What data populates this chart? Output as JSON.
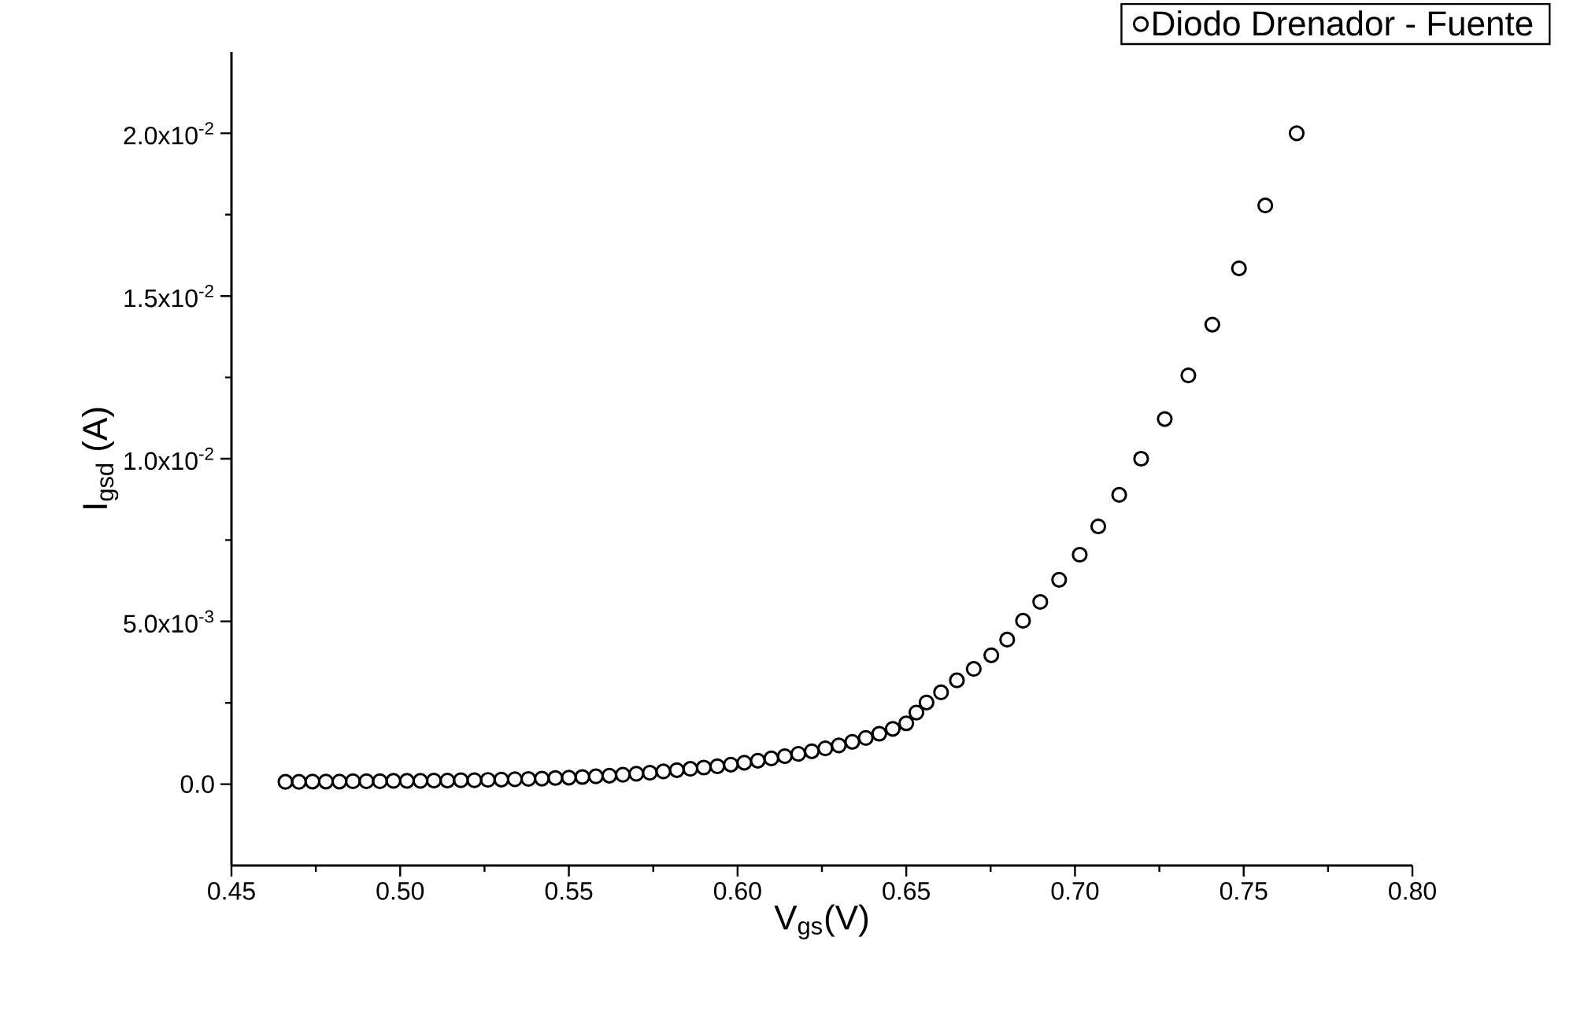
{
  "chart_data": {
    "type": "scatter",
    "xlabel": "V$_{gs}$(V)",
    "ylabel": "I$_{gsd}$ (A)",
    "xlim": [
      0.45,
      0.8
    ],
    "ylim": [
      -0.0025,
      0.0225
    ],
    "xticks": [
      {
        "value": 0.45,
        "label": "0.45"
      },
      {
        "value": 0.5,
        "label": "0.50"
      },
      {
        "value": 0.55,
        "label": "0.55"
      },
      {
        "value": 0.6,
        "label": "0.60"
      },
      {
        "value": 0.65,
        "label": "0.65"
      },
      {
        "value": 0.7,
        "label": "0.70"
      },
      {
        "value": 0.75,
        "label": "0.75"
      },
      {
        "value": 0.8,
        "label": "0.80"
      }
    ],
    "yticks": [
      {
        "value": 0,
        "label": "0.0"
      },
      {
        "value": 0.005,
        "label": "5.0x10$^{-3}$"
      },
      {
        "value": 0.01,
        "label": "1.0x10$^{-2}$"
      },
      {
        "value": 0.015,
        "label": "1.5x10$^{-2}$"
      },
      {
        "value": 0.02,
        "label": "2.0x10$^{-2}$"
      }
    ],
    "legend": "top right",
    "marker": "circle",
    "series": [
      {
        "name": "Diodo Drenador - Fuente",
        "color": "#000000",
        "x": [
          0.466,
          0.47,
          0.474,
          0.478,
          0.482,
          0.486,
          0.49,
          0.494,
          0.498,
          0.502,
          0.506,
          0.51,
          0.514,
          0.518,
          0.522,
          0.526,
          0.53,
          0.534,
          0.538,
          0.542,
          0.546,
          0.55,
          0.554,
          0.558,
          0.562,
          0.566,
          0.57,
          0.574,
          0.578,
          0.582,
          0.586,
          0.59,
          0.594,
          0.598,
          0.602,
          0.606,
          0.61,
          0.614,
          0.618,
          0.622,
          0.626,
          0.63,
          0.634,
          0.638,
          0.642,
          0.646,
          0.65,
          0.653,
          0.656,
          0.6603,
          0.665,
          0.67,
          0.6752,
          0.6799,
          0.6846,
          0.6897,
          0.6953,
          0.7014,
          0.7069,
          0.7131,
          0.7196,
          0.7266,
          0.7336,
          0.7407,
          0.7486,
          0.7564,
          0.7657
        ],
        "values": [
          7e-05,
          7e-05,
          8e-05,
          8e-05,
          8e-05,
          9e-05,
          9e-05,
          9e-05,
          0.0001,
          0.0001,
          0.0001,
          0.00011,
          0.00011,
          0.00012,
          0.00012,
          0.00013,
          0.00014,
          0.00015,
          0.00016,
          0.00017,
          0.00019,
          0.0002,
          0.00022,
          0.00024,
          0.00026,
          0.00029,
          0.00032,
          0.00035,
          0.00039,
          0.00043,
          0.00047,
          0.00051,
          0.00055,
          0.0006,
          0.00066,
          0.00072,
          0.00079,
          0.00086,
          0.00093,
          0.00101,
          0.0011,
          0.00119,
          0.0013,
          0.00142,
          0.00155,
          0.0017,
          0.00187,
          0.0022,
          0.00251,
          0.00282,
          0.00319,
          0.00354,
          0.00396,
          0.00444,
          0.00502,
          0.0056,
          0.00628,
          0.00705,
          0.00792,
          0.00889,
          0.01,
          0.01122,
          0.01256,
          0.01412,
          0.01585,
          0.01778,
          0.02
        ]
      }
    ]
  }
}
